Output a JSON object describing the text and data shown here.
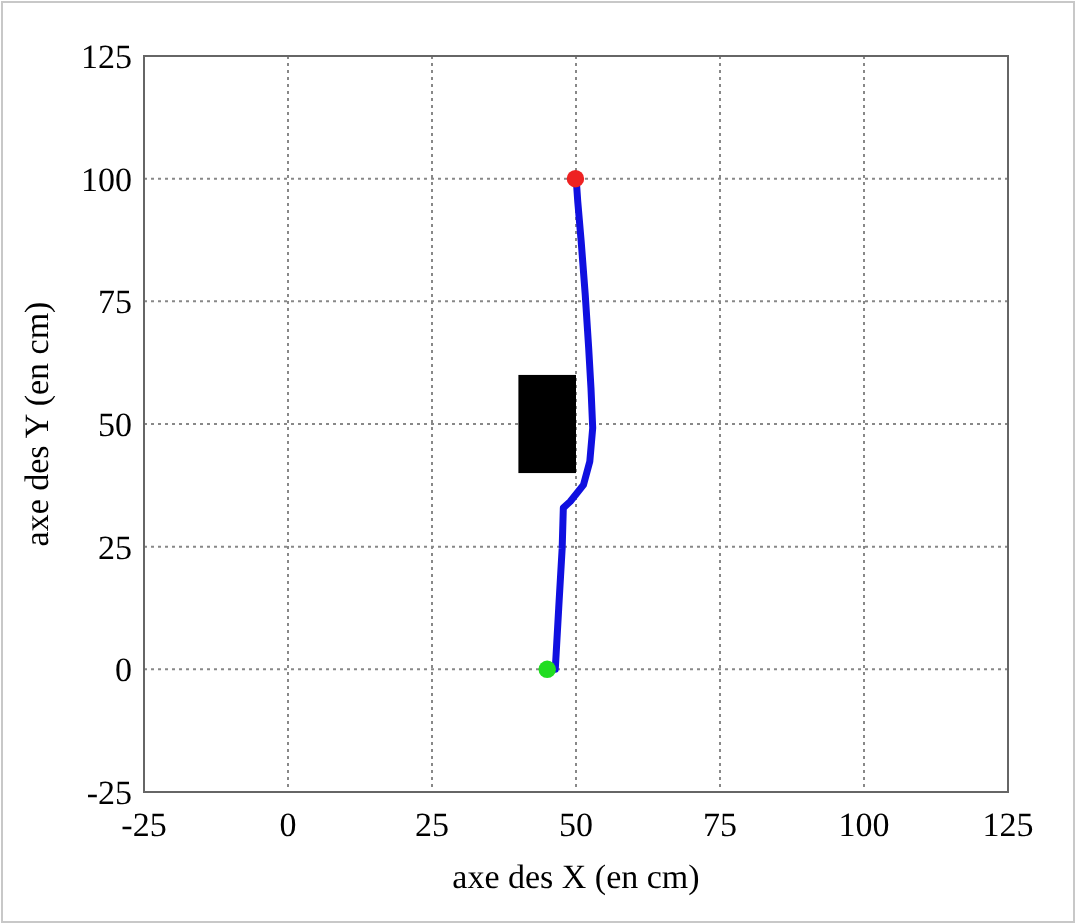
{
  "chart_data": {
    "type": "line",
    "xlabel": "axe des X (en cm)",
    "ylabel": "axe des Y (en cm)",
    "xlim": [
      -25,
      125
    ],
    "xticks": [
      -25,
      0,
      25,
      50,
      75,
      100,
      125
    ],
    "ylim": [
      -25,
      125
    ],
    "yticks": [
      -25,
      0,
      25,
      50,
      75,
      100,
      125
    ],
    "grid": true,
    "line_style": "solid",
    "marker": "none",
    "series": [
      {
        "color": "#1010e0",
        "x": [
          46.4,
          47,
          47.6,
          47.8,
          49,
          51.3,
          52.4,
          52.9,
          52.6,
          52.2,
          51.6,
          50.9,
          50.3,
          50.1,
          49.9
        ],
        "values": [
          0,
          12.5,
          24.7,
          32.9,
          34.2,
          37.6,
          42.4,
          49.2,
          57.3,
          65.5,
          76.4,
          87.2,
          95.4,
          98.8,
          100
        ]
      },
      {
        "type": "scatter",
        "color": "#22dd22",
        "marker": "circle",
        "x": [
          45
        ],
        "values": [
          0
        ]
      },
      {
        "type": "scatter",
        "color": "#ee2222",
        "marker": "circle",
        "x": [
          49.9
        ],
        "values": [
          100
        ]
      }
    ]
  }
}
